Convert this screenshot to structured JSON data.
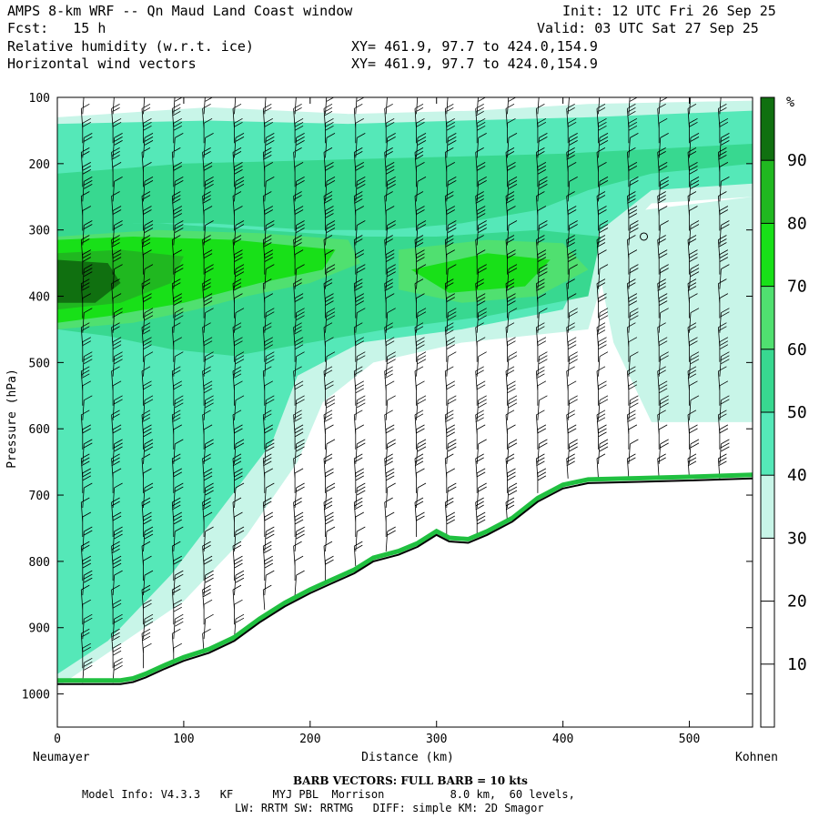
{
  "header": {
    "title": "AMPS 8-km WRF -- Qn Maud Land Coast window",
    "init": "Init: 12 UTC Fri 26 Sep 25",
    "fcst": "Fcst:   15 h",
    "valid": "Valid: 03 UTC Sat 27 Sep 25",
    "field1": "Relative humidity (w.r.t. ice)",
    "field2": "Horizontal wind vectors",
    "xy1": "XY= 461.9, 97.7 to 424.0,154.9",
    "xy2": "XY= 461.9, 97.7 to 424.0,154.9"
  },
  "chart_data": {
    "type": "heatmap",
    "xlabel": "Distance (km)",
    "ylabel": "Pressure (hPa)",
    "xlim": [
      0,
      550
    ],
    "ylim": [
      1050,
      100
    ],
    "x_ticks": [
      0,
      100,
      200,
      300,
      400,
      500
    ],
    "x_tick_labels": [
      "0",
      "100",
      "200",
      "300",
      "400",
      "500"
    ],
    "y_ticks": [
      100,
      200,
      300,
      400,
      500,
      600,
      700,
      800,
      900,
      1000
    ],
    "y_tick_labels": [
      "100",
      "200",
      "300",
      "400",
      "500",
      "600",
      "700",
      "800",
      "900",
      "1000"
    ],
    "x_start_label": "Neumayer",
    "x_end_label": "Kohnen",
    "colorbar": {
      "unit": "%",
      "levels": [
        0,
        10,
        20,
        30,
        40,
        50,
        60,
        70,
        80,
        90,
        100
      ],
      "labels": [
        "10",
        "20",
        "30",
        "40",
        "50",
        "60",
        "70",
        "80",
        "90"
      ],
      "colors": [
        "#ffffff",
        "#ffffff",
        "#ffffff",
        "#c8f5e8",
        "#55e8b8",
        "#38d890",
        "#50e070",
        "#18e018",
        "#20b820",
        "#107010"
      ]
    },
    "terrain_surface_pressure": [
      [
        0,
        985
      ],
      [
        25,
        985
      ],
      [
        50,
        985
      ],
      [
        60,
        982
      ],
      [
        70,
        975
      ],
      [
        85,
        962
      ],
      [
        100,
        950
      ],
      [
        120,
        938
      ],
      [
        140,
        920
      ],
      [
        160,
        892
      ],
      [
        180,
        868
      ],
      [
        200,
        848
      ],
      [
        215,
        835
      ],
      [
        235,
        818
      ],
      [
        250,
        800
      ],
      [
        270,
        790
      ],
      [
        285,
        778
      ],
      [
        300,
        760
      ],
      [
        310,
        770
      ],
      [
        325,
        772
      ],
      [
        340,
        760
      ],
      [
        360,
        740
      ],
      [
        380,
        710
      ],
      [
        400,
        690
      ],
      [
        420,
        682
      ],
      [
        460,
        680
      ],
      [
        500,
        678
      ],
      [
        550,
        675
      ]
    ],
    "rh_regions": [
      {
        "rh": 30,
        "polygon": [
          [
            0,
            130
          ],
          [
            120,
            115
          ],
          [
            230,
            125
          ],
          [
            330,
            120
          ],
          [
            420,
            110
          ],
          [
            550,
            105
          ],
          [
            550,
            250
          ],
          [
            470,
            260
          ],
          [
            440,
            320
          ],
          [
            420,
            450
          ],
          [
            320,
            470
          ],
          [
            250,
            500
          ],
          [
            210,
            560
          ],
          [
            190,
            650
          ],
          [
            150,
            760
          ],
          [
            100,
            860
          ],
          [
            0,
            990
          ]
        ]
      },
      {
        "rh": 30,
        "polygon": [
          [
            420,
            280
          ],
          [
            550,
            250
          ],
          [
            550,
            590
          ],
          [
            470,
            590
          ],
          [
            440,
            470
          ]
        ]
      },
      {
        "rh": 40,
        "polygon": [
          [
            0,
            140
          ],
          [
            120,
            135
          ],
          [
            230,
            140
          ],
          [
            320,
            135
          ],
          [
            420,
            130
          ],
          [
            550,
            120
          ],
          [
            550,
            230
          ],
          [
            470,
            240
          ],
          [
            430,
            300
          ],
          [
            400,
            420
          ],
          [
            320,
            450
          ],
          [
            240,
            470
          ],
          [
            190,
            520
          ],
          [
            170,
            620
          ],
          [
            130,
            720
          ],
          [
            90,
            820
          ],
          [
            40,
            920
          ],
          [
            0,
            970
          ]
        ]
      },
      {
        "rh": 50,
        "polygon": [
          [
            0,
            215
          ],
          [
            100,
            200
          ],
          [
            200,
            195
          ],
          [
            300,
            190
          ],
          [
            400,
            185
          ],
          [
            550,
            170
          ],
          [
            550,
            200
          ],
          [
            470,
            215
          ],
          [
            420,
            240
          ],
          [
            380,
            270
          ],
          [
            320,
            290
          ],
          [
            260,
            300
          ],
          [
            200,
            300
          ],
          [
            120,
            290
          ],
          [
            60,
            290
          ],
          [
            0,
            300
          ]
        ]
      },
      {
        "rh": 50,
        "polygon": [
          [
            0,
            290
          ],
          [
            80,
            290
          ],
          [
            160,
            300
          ],
          [
            240,
            310
          ],
          [
            300,
            310
          ],
          [
            380,
            300
          ],
          [
            430,
            310
          ],
          [
            420,
            400
          ],
          [
            340,
            430
          ],
          [
            260,
            450
          ],
          [
            200,
            470
          ],
          [
            140,
            490
          ],
          [
            90,
            480
          ],
          [
            40,
            460
          ],
          [
            0,
            450
          ]
        ]
      },
      {
        "rh": 60,
        "polygon": [
          [
            0,
            310
          ],
          [
            80,
            300
          ],
          [
            160,
            305
          ],
          [
            230,
            315
          ],
          [
            240,
            350
          ],
          [
            200,
            380
          ],
          [
            150,
            400
          ],
          [
            110,
            420
          ],
          [
            60,
            440
          ],
          [
            0,
            450
          ]
        ]
      },
      {
        "rh": 60,
        "polygon": [
          [
            270,
            330
          ],
          [
            340,
            315
          ],
          [
            400,
            320
          ],
          [
            420,
            360
          ],
          [
            380,
            400
          ],
          [
            320,
            410
          ],
          [
            270,
            390
          ]
        ]
      },
      {
        "rh": 70,
        "polygon": [
          [
            0,
            315
          ],
          [
            60,
            310
          ],
          [
            140,
            315
          ],
          [
            220,
            330
          ],
          [
            210,
            360
          ],
          [
            160,
            380
          ],
          [
            100,
            410
          ],
          [
            40,
            430
          ],
          [
            0,
            440
          ]
        ]
      },
      {
        "rh": 70,
        "polygon": [
          [
            280,
            360
          ],
          [
            340,
            335
          ],
          [
            390,
            345
          ],
          [
            370,
            385
          ],
          [
            310,
            395
          ]
        ]
      },
      {
        "rh": 80,
        "polygon": [
          [
            0,
            335
          ],
          [
            50,
            330
          ],
          [
            100,
            340
          ],
          [
            90,
            380
          ],
          [
            50,
            410
          ],
          [
            0,
            420
          ]
        ]
      },
      {
        "rh": 90,
        "polygon": [
          [
            0,
            345
          ],
          [
            40,
            350
          ],
          [
            50,
            380
          ],
          [
            30,
            410
          ],
          [
            0,
            410
          ]
        ]
      }
    ]
  },
  "footer": {
    "barb_vectors": "BARB VECTORS:  FULL BARB = 10 kts",
    "model_info": "Model Info: V4.3.3   KF      MYJ PBL  Morrison          8.0 km,  60 levels,",
    "model_info2": "LW: RRTM SW: RRTMG   DIFF: simple KM: 2D Smagor"
  }
}
